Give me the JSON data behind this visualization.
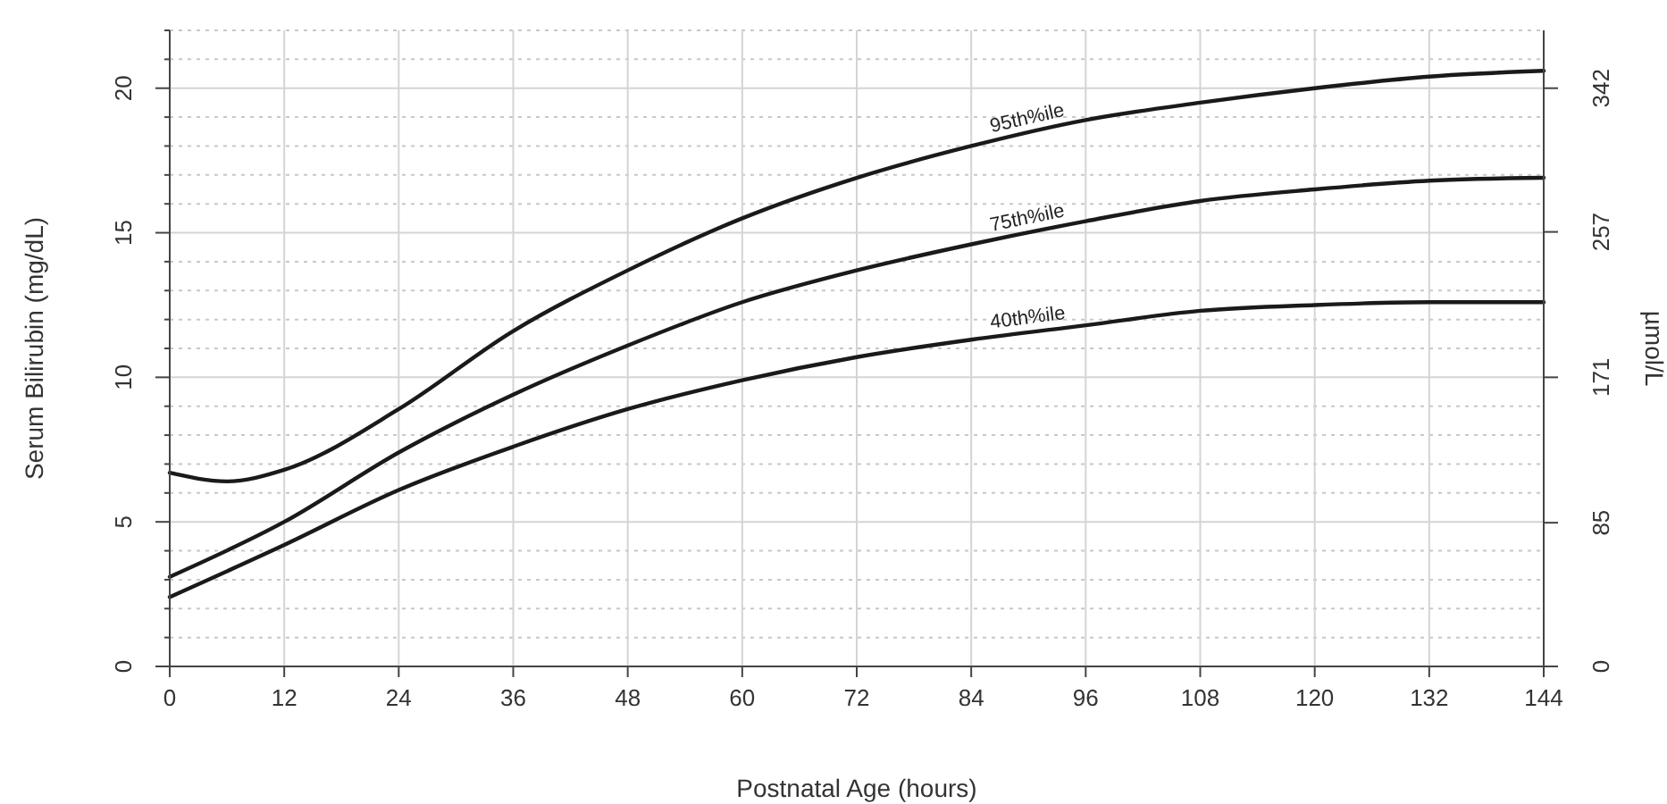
{
  "chart_data": {
    "type": "line",
    "xlabel": "Postnatal Age (hours)",
    "ylabel": "Serum Bilirubin (mg/dL)",
    "y2label": "µmol/L",
    "x": [
      0,
      6,
      12,
      24,
      36,
      48,
      60,
      72,
      84,
      96,
      108,
      120,
      132,
      144
    ],
    "series": [
      {
        "name": "95th%ile",
        "color": "#1a1a1a",
        "values": [
          6.7,
          6.4,
          6.8,
          8.9,
          11.6,
          13.7,
          15.5,
          16.9,
          18.0,
          18.9,
          19.5,
          20.0,
          20.4,
          20.6
        ]
      },
      {
        "name": "75th%ile",
        "color": "#1a1a1a",
        "values": [
          3.1,
          null,
          5.0,
          7.4,
          9.4,
          11.1,
          12.6,
          13.7,
          14.6,
          15.4,
          16.1,
          16.5,
          16.8,
          16.9
        ]
      },
      {
        "name": "40th%ile",
        "color": "#1a1a1a",
        "values": [
          2.4,
          null,
          4.2,
          6.1,
          7.6,
          8.9,
          9.9,
          10.7,
          11.3,
          11.8,
          12.3,
          12.5,
          12.6,
          12.6
        ]
      }
    ],
    "xlim": [
      0,
      144
    ],
    "xticks": [
      0,
      12,
      24,
      36,
      48,
      60,
      72,
      84,
      96,
      108,
      120,
      132,
      144
    ],
    "ylim": [
      0,
      22
    ],
    "yticks": [
      0,
      {
        "value": 1,
        "label": null
      },
      {
        "value": 2,
        "label": null
      },
      {
        "value": 3,
        "label": null
      },
      {
        "value": 4,
        "label": null
      },
      5,
      {
        "value": 6,
        "label": null
      },
      {
        "value": 7,
        "label": null
      },
      {
        "value": 8,
        "label": null
      },
      {
        "value": 9,
        "label": null
      },
      10,
      {
        "value": 11,
        "label": null
      },
      {
        "value": 12,
        "label": null
      },
      {
        "value": 13,
        "label": null
      },
      {
        "value": 14,
        "label": null
      },
      15,
      {
        "value": 16,
        "label": null
      },
      {
        "value": 17,
        "label": null
      },
      {
        "value": 18,
        "label": null
      },
      {
        "value": 19,
        "label": null
      },
      20,
      {
        "value": 21,
        "label": null
      },
      {
        "value": 22,
        "label": null
      }
    ],
    "y2lim": [
      0,
      376.2
    ],
    "y2ticks": [
      0,
      85,
      171,
      257,
      342
    ],
    "grid": true,
    "marker": "none",
    "line_style": "solid"
  }
}
